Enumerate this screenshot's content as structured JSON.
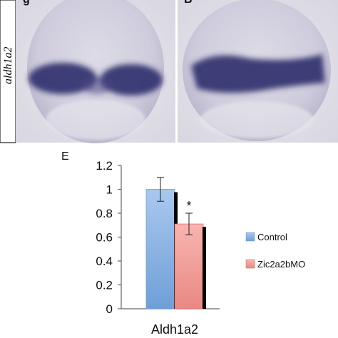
{
  "panels": {
    "top_left_letter": "g",
    "top_right_letter": "B",
    "gene_label": "aldh1a2",
    "chart_letter": "E"
  },
  "colors": {
    "control": "#8db4e2",
    "control_dark": "#4f81bd",
    "morpholino": "#f4a09c",
    "morpholino_dark": "#e0706b",
    "stain": "#2e2c6b",
    "embryo_background": "#c6c2d6"
  },
  "chart_data": {
    "type": "bar",
    "title": "",
    "xlabel": "",
    "ylabel": "",
    "categories": [
      "Aldh1a2"
    ],
    "series": [
      {
        "name": "Control",
        "values": [
          1.0
        ],
        "error": [
          0.1
        ],
        "color": "#8db4e2"
      },
      {
        "name": "Zic2a2bMO",
        "values": [
          0.71
        ],
        "error": [
          0.09
        ],
        "color": "#f4a09c"
      }
    ],
    "ylim": [
      0,
      1.2
    ],
    "yticks": [
      "0",
      "0.2",
      "0.4",
      "0.6",
      "0.8",
      "1",
      "1.2"
    ],
    "significance": [
      {
        "series": "Zic2a2bMO",
        "label": "*"
      }
    ],
    "legend": {
      "placement": "right",
      "entries": [
        "Control",
        "Zic2a2bMO"
      ]
    },
    "grid": false
  }
}
